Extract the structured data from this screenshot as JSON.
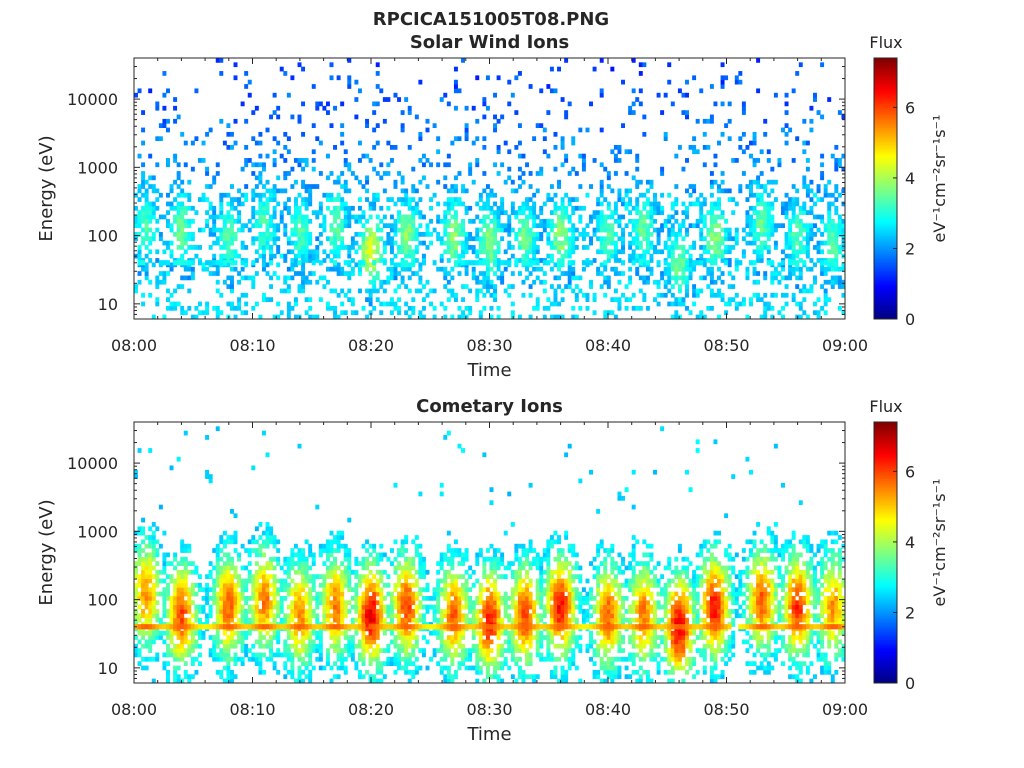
{
  "figure_title": "RPCICA151005T08.PNG",
  "colormap": "jet",
  "chart_data": [
    {
      "type": "heatmap",
      "title": "Solar Wind Ions",
      "xlabel": "Time",
      "ylabel": "Energy (eV)",
      "x_ticks": [
        "08:00",
        "08:10",
        "08:20",
        "08:30",
        "08:40",
        "08:50",
        "09:00"
      ],
      "y_ticks": [
        "10",
        "100",
        "1000",
        "10000"
      ],
      "y_scale": "log",
      "ylim": [
        6,
        40000
      ],
      "colorbar": {
        "label": "Flux",
        "unit": "eV⁻¹cm⁻²sr⁻¹s⁻¹",
        "ticks": [
          "0",
          "2",
          "4",
          "6"
        ],
        "range": [
          0,
          7.4
        ]
      },
      "structure": {
        "background_flux": 2.0,
        "bursts": [
          {
            "time": "08:01",
            "peak_flux": 3.3,
            "peak_energy_eV": 150
          },
          {
            "time": "08:04",
            "peak_flux": 3.6,
            "peak_energy_eV": 120
          },
          {
            "time": "08:08",
            "peak_flux": 3.4,
            "peak_energy_eV": 100
          },
          {
            "time": "08:11",
            "peak_flux": 3.3,
            "peak_energy_eV": 150
          },
          {
            "time": "08:14",
            "peak_flux": 3.3,
            "peak_energy_eV": 120
          },
          {
            "time": "08:17",
            "peak_flux": 3.5,
            "peak_energy_eV": 150
          },
          {
            "time": "08:20",
            "peak_flux": 4.5,
            "peak_energy_eV": 60
          },
          {
            "time": "08:23",
            "peak_flux": 3.8,
            "peak_energy_eV": 100
          },
          {
            "time": "08:27",
            "peak_flux": 3.8,
            "peak_energy_eV": 100
          },
          {
            "time": "08:30",
            "peak_flux": 3.8,
            "peak_energy_eV": 80
          },
          {
            "time": "08:33",
            "peak_flux": 3.6,
            "peak_energy_eV": 100
          },
          {
            "time": "08:36",
            "peak_flux": 3.9,
            "peak_energy_eV": 100
          },
          {
            "time": "08:40",
            "peak_flux": 3.4,
            "peak_energy_eV": 100
          },
          {
            "time": "08:43",
            "peak_flux": 3.5,
            "peak_energy_eV": 120
          },
          {
            "time": "08:46",
            "peak_flux": 3.6,
            "peak_energy_eV": 40
          },
          {
            "time": "08:49",
            "peak_flux": 3.8,
            "peak_energy_eV": 100
          },
          {
            "time": "08:53",
            "peak_flux": 3.5,
            "peak_energy_eV": 150
          },
          {
            "time": "08:56",
            "peak_flux": 3.4,
            "peak_energy_eV": 100
          },
          {
            "time": "08:59",
            "peak_flux": 3.4,
            "peak_energy_eV": 80
          }
        ]
      }
    },
    {
      "type": "heatmap",
      "title": "Cometary Ions",
      "xlabel": "Time",
      "ylabel": "Energy (eV)",
      "x_ticks": [
        "08:00",
        "08:10",
        "08:20",
        "08:30",
        "08:40",
        "08:50",
        "09:00"
      ],
      "y_ticks": [
        "10",
        "100",
        "1000",
        "10000"
      ],
      "y_scale": "log",
      "ylim": [
        6,
        40000
      ],
      "colorbar": {
        "label": "Flux",
        "unit": "eV⁻¹cm⁻²sr⁻¹s⁻¹",
        "ticks": [
          "0",
          "2",
          "4",
          "6"
        ],
        "range": [
          0,
          7.4
        ]
      },
      "structure": {
        "background_flux": 2.2,
        "bursts": [
          {
            "time": "08:01",
            "peak_flux": 5.4,
            "peak_energy_eV": 120
          },
          {
            "time": "08:04",
            "peak_flux": 6.0,
            "peak_energy_eV": 60
          },
          {
            "time": "08:08",
            "peak_flux": 5.8,
            "peak_energy_eV": 80
          },
          {
            "time": "08:11",
            "peak_flux": 5.6,
            "peak_energy_eV": 100
          },
          {
            "time": "08:14",
            "peak_flux": 5.5,
            "peak_energy_eV": 60
          },
          {
            "time": "08:17",
            "peak_flux": 5.6,
            "peak_energy_eV": 80
          },
          {
            "time": "08:20",
            "peak_flux": 6.6,
            "peak_energy_eV": 60
          },
          {
            "time": "08:23",
            "peak_flux": 6.0,
            "peak_energy_eV": 80
          },
          {
            "time": "08:27",
            "peak_flux": 5.8,
            "peak_energy_eV": 60
          },
          {
            "time": "08:30",
            "peak_flux": 6.4,
            "peak_energy_eV": 50
          },
          {
            "time": "08:33",
            "peak_flux": 6.0,
            "peak_energy_eV": 60
          },
          {
            "time": "08:36",
            "peak_flux": 6.4,
            "peak_energy_eV": 80
          },
          {
            "time": "08:40",
            "peak_flux": 5.8,
            "peak_energy_eV": 60
          },
          {
            "time": "08:43",
            "peak_flux": 5.6,
            "peak_energy_eV": 60
          },
          {
            "time": "08:46",
            "peak_flux": 6.6,
            "peak_energy_eV": 40
          },
          {
            "time": "08:49",
            "peak_flux": 6.4,
            "peak_energy_eV": 80
          },
          {
            "time": "08:53",
            "peak_flux": 5.8,
            "peak_energy_eV": 100
          },
          {
            "time": "08:56",
            "peak_flux": 6.2,
            "peak_energy_eV": 80
          },
          {
            "time": "08:59",
            "peak_flux": 5.4,
            "peak_energy_eV": 80
          }
        ]
      }
    }
  ]
}
